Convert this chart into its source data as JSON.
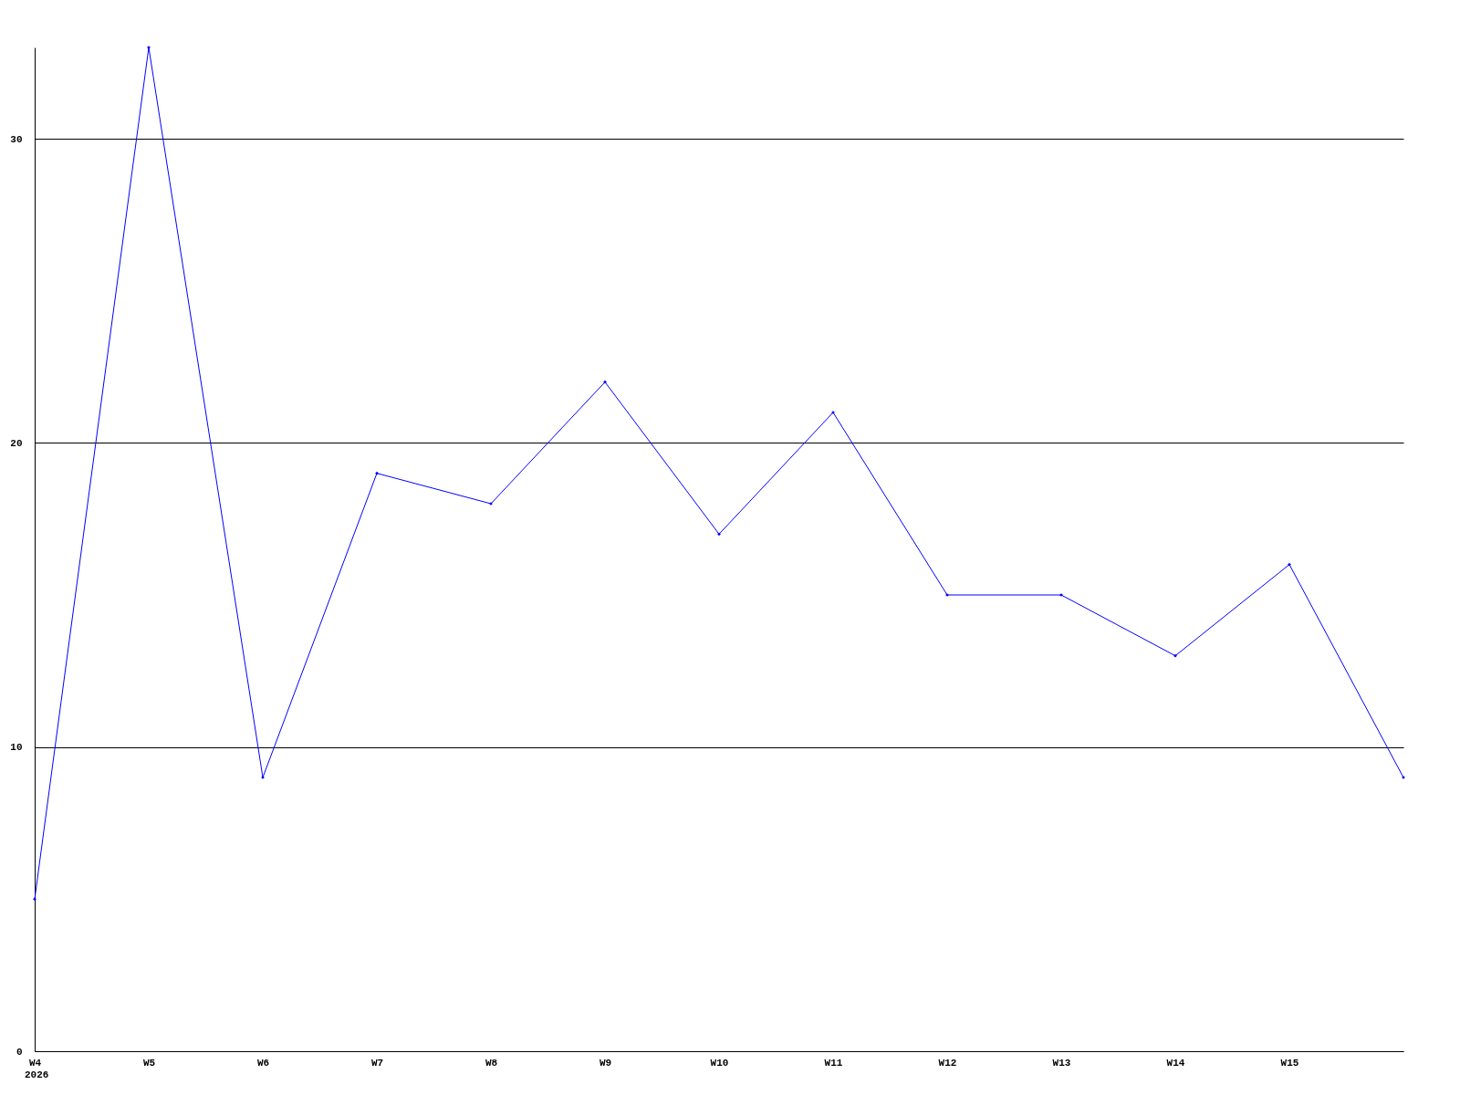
{
  "chart_data": {
    "type": "line",
    "categories": [
      "W4",
      "W5",
      "W6",
      "W7",
      "W8",
      "W9",
      "W10",
      "W11",
      "W12",
      "W13",
      "W14",
      "W15",
      null
    ],
    "series": [
      {
        "color": "#0000ff",
        "values": [
          5,
          33,
          9,
          19,
          18,
          22,
          17,
          21,
          15,
          15,
          13,
          16,
          9
        ]
      }
    ],
    "ylim": [
      0,
      33
    ],
    "yticks": [
      0,
      10,
      20,
      30
    ],
    "grid": "y",
    "marker": "diamond",
    "annotations": [
      "2026"
    ]
  }
}
